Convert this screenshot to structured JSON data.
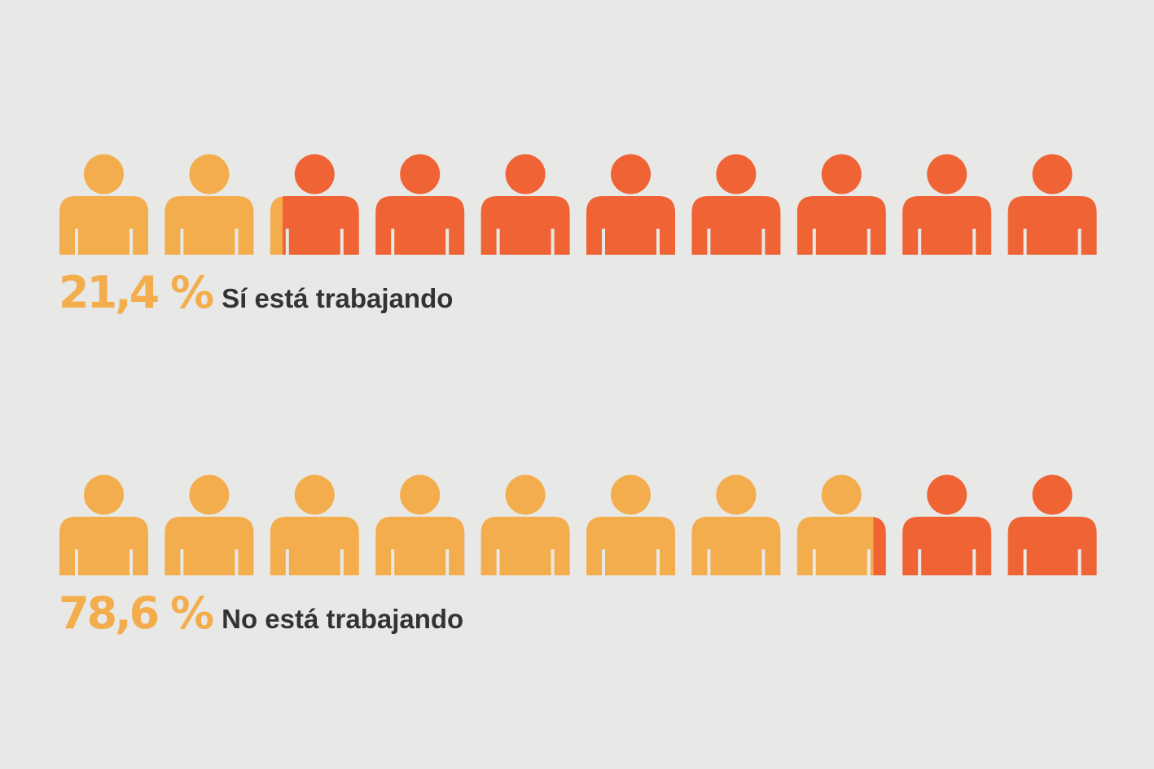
{
  "colors": {
    "background": "#e8e8e6",
    "highlight": "#f4ad4d",
    "base": "#ef6335",
    "text": "#333333"
  },
  "chart_data": [
    {
      "type": "pictogram",
      "icon": "person-icon",
      "total_icons": 10,
      "value_percent": 21.4,
      "value_label": "21,4 %",
      "category_label": "Sí está trabajando"
    },
    {
      "type": "pictogram",
      "icon": "person-icon",
      "total_icons": 10,
      "value_percent": 78.6,
      "value_label": "78,6 %",
      "category_label": "No está trabajando"
    }
  ]
}
